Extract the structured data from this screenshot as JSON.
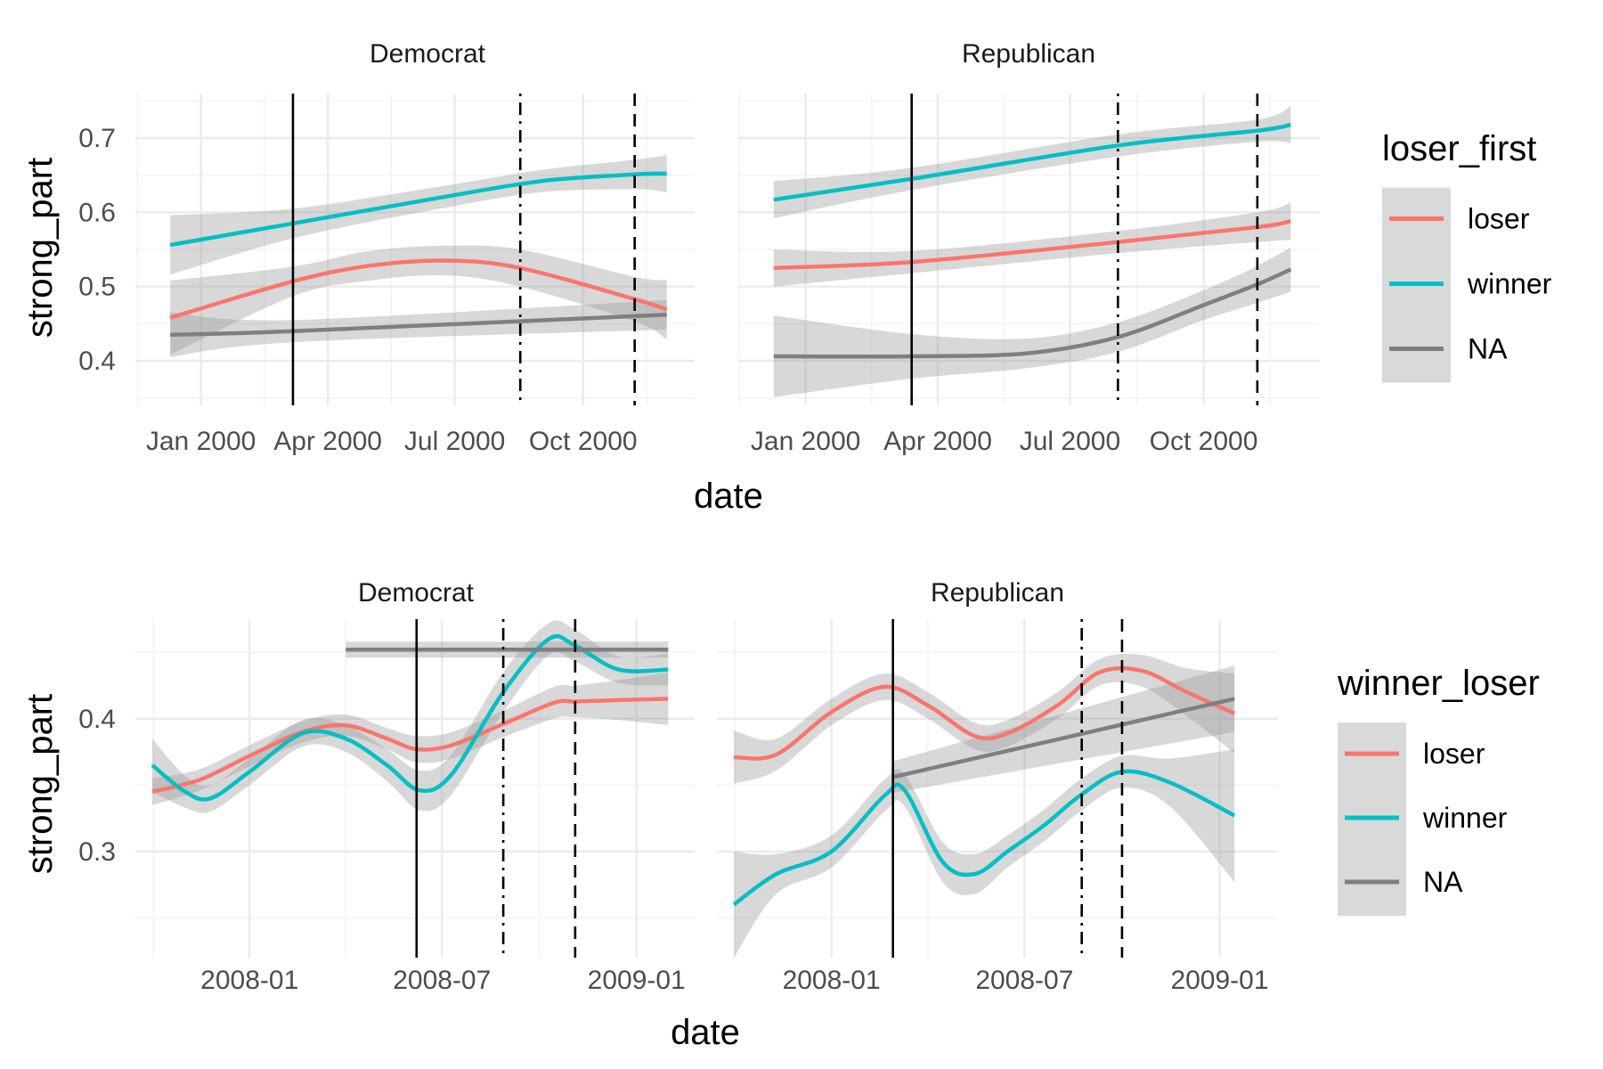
{
  "chart_data": [
    {
      "type": "line",
      "smooth_band": true,
      "facets": [
        "Democrat",
        "Republican"
      ],
      "xlabel": "date",
      "ylabel": "strong_part",
      "x_ticks": [
        "Jan 2000",
        "Apr 2000",
        "Jul 2000",
        "Oct 2000"
      ],
      "x_tick_values": [
        "2000-01-01",
        "2000-04-01",
        "2000-07-01",
        "2000-10-01"
      ],
      "xlim": [
        "1999-11-15",
        "2000-12-20"
      ],
      "ylim": [
        0.34,
        0.76
      ],
      "y_ticks": [
        0.4,
        0.5,
        0.6,
        0.7
      ],
      "y_tick_labels": [
        "0.4",
        "0.5",
        "0.6",
        "0.7"
      ],
      "grid": true,
      "legend": {
        "title": "loser_first",
        "position": "right",
        "entries": [
          "loser",
          "winner",
          "NA"
        ]
      },
      "series_colors": {
        "loser": "#F8766D",
        "winner": "#00BFC4",
        "NA": "#7F7F7F"
      },
      "panels": [
        {
          "facet": "Democrat",
          "vlines": [
            {
              "x": "2000-03-07",
              "linetype": "solid"
            },
            {
              "x": "2000-08-17",
              "linetype": "dotdash"
            },
            {
              "x": "2000-11-07",
              "linetype": "dashed"
            }
          ],
          "series": [
            {
              "name": "winner",
              "x": [
                "1999-12-10",
                "2000-03-07",
                "2000-06-15",
                "2000-09-01",
                "2000-11-07",
                "2000-11-30"
              ],
              "y": [
                0.556,
                0.585,
                0.618,
                0.642,
                0.651,
                0.652
              ],
              "se": [
                0.04,
                0.02,
                0.015,
                0.015,
                0.02,
                0.025
              ]
            },
            {
              "name": "loser",
              "x": [
                "1999-12-10",
                "2000-03-07",
                "2000-05-01",
                "2000-06-25",
                "2000-08-17",
                "2000-11-07",
                "2000-11-30"
              ],
              "y": [
                0.458,
                0.507,
                0.528,
                0.535,
                0.525,
                0.483,
                0.469
              ],
              "se": [
                0.05,
                0.02,
                0.02,
                0.02,
                0.025,
                0.03,
                0.04
              ]
            },
            {
              "name": "NA",
              "x": [
                "1999-12-10",
                "2000-03-07",
                "2000-11-30"
              ],
              "y": [
                0.435,
                0.44,
                0.462
              ],
              "se": [
                0.03,
                0.015,
                0.02
              ]
            }
          ]
        },
        {
          "facet": "Republican",
          "vlines": [
            {
              "x": "2000-03-14",
              "linetype": "solid"
            },
            {
              "x": "2000-08-03",
              "linetype": "dotdash"
            },
            {
              "x": "2000-11-07",
              "linetype": "dashed"
            }
          ],
          "series": [
            {
              "name": "winner",
              "x": [
                "1999-12-10",
                "2000-03-14",
                "2000-08-03",
                "2000-11-07",
                "2000-11-30"
              ],
              "y": [
                0.617,
                0.645,
                0.69,
                0.71,
                0.718
              ],
              "se": [
                0.025,
                0.015,
                0.015,
                0.015,
                0.025
              ]
            },
            {
              "name": "loser",
              "x": [
                "1999-12-10",
                "2000-03-14",
                "2000-08-03",
                "2000-11-07",
                "2000-11-30"
              ],
              "y": [
                0.525,
                0.533,
                0.56,
                0.58,
                0.588
              ],
              "se": [
                0.025,
                0.015,
                0.015,
                0.02,
                0.025
              ]
            },
            {
              "name": "NA",
              "x": [
                "1999-12-10",
                "2000-03-14",
                "2000-06-01",
                "2000-08-03",
                "2000-10-01",
                "2000-11-07",
                "2000-11-30"
              ],
              "y": [
                0.406,
                0.406,
                0.41,
                0.432,
                0.475,
                0.503,
                0.523
              ],
              "se": [
                0.055,
                0.03,
                0.02,
                0.02,
                0.02,
                0.025,
                0.03
              ]
            }
          ]
        }
      ]
    },
    {
      "type": "line",
      "smooth_band": true,
      "facets": [
        "Democrat",
        "Republican"
      ],
      "xlabel": "date",
      "ylabel": "strong_part",
      "x_ticks": [
        "2008-01",
        "2008-07",
        "2009-01"
      ],
      "x_tick_values": [
        "2008-01-01",
        "2008-07-01",
        "2009-01-01"
      ],
      "xlim": [
        "2007-09-15",
        "2009-02-25"
      ],
      "ylim": [
        0.22,
        0.475
      ],
      "y_ticks": [
        0.3,
        0.4
      ],
      "y_tick_labels": [
        "0.3",
        "0.4"
      ],
      "grid": true,
      "legend": {
        "title": "winner_loser",
        "position": "right",
        "entries": [
          "loser",
          "winner",
          "NA"
        ]
      },
      "series_colors": {
        "loser": "#F8766D",
        "winner": "#00BFC4",
        "NA": "#7F7F7F"
      },
      "panels": [
        {
          "facet": "Democrat",
          "vlines": [
            {
              "x": "2008-06-07",
              "linetype": "solid"
            },
            {
              "x": "2008-08-28",
              "linetype": "dotdash"
            },
            {
              "x": "2008-11-04",
              "linetype": "dashed"
            }
          ],
          "series": [
            {
              "name": "loser",
              "x": [
                "2007-10-01",
                "2007-11-15",
                "2008-01-01",
                "2008-02-20",
                "2008-04-01",
                "2008-05-10",
                "2008-06-07",
                "2008-07-10",
                "2008-08-28",
                "2008-10-15",
                "2008-11-04",
                "2008-12-15",
                "2009-01-31"
              ],
              "y": [
                0.345,
                0.354,
                0.372,
                0.39,
                0.395,
                0.385,
                0.377,
                0.38,
                0.396,
                0.412,
                0.413,
                0.414,
                0.415
              ],
              "se": [
                0.01,
                0.008,
                0.008,
                0.008,
                0.008,
                0.008,
                0.01,
                0.01,
                0.01,
                0.012,
                0.012,
                0.015,
                0.02
              ]
            },
            {
              "name": "winner",
              "x": [
                "2007-10-01",
                "2007-11-01",
                "2007-11-25",
                "2008-01-01",
                "2008-02-20",
                "2008-04-01",
                "2008-05-10",
                "2008-06-10",
                "2008-07-10",
                "2008-08-28",
                "2008-10-10",
                "2008-11-04",
                "2008-12-15",
                "2009-01-31"
              ],
              "y": [
                0.365,
                0.345,
                0.34,
                0.36,
                0.389,
                0.385,
                0.365,
                0.346,
                0.358,
                0.42,
                0.46,
                0.455,
                0.437,
                0.437
              ],
              "se": [
                0.02,
                0.012,
                0.01,
                0.01,
                0.01,
                0.01,
                0.012,
                0.015,
                0.015,
                0.015,
                0.012,
                0.012,
                0.01,
                0.012
              ]
            },
            {
              "name": "NA",
              "x": [
                "2008-04-01",
                "2009-01-31"
              ],
              "y": [
                0.452,
                0.452
              ],
              "se": [
                0.006,
                0.006
              ]
            }
          ]
        },
        {
          "facet": "Republican",
          "vlines": [
            {
              "x": "2008-02-28",
              "linetype": "solid"
            },
            {
              "x": "2008-08-24",
              "linetype": "dotdash"
            },
            {
              "x": "2008-10-01",
              "linetype": "dashed"
            }
          ],
          "series": [
            {
              "name": "loser",
              "x": [
                "2007-10-01",
                "2007-11-10",
                "2008-01-01",
                "2008-02-20",
                "2008-04-01",
                "2008-05-15",
                "2008-06-15",
                "2008-08-01",
                "2008-09-10",
                "2008-10-20",
                "2008-12-01",
                "2009-01-15"
              ],
              "y": [
                0.371,
                0.373,
                0.405,
                0.424,
                0.41,
                0.387,
                0.389,
                0.41,
                0.435,
                0.436,
                0.42,
                0.404
              ],
              "se": [
                0.02,
                0.012,
                0.01,
                0.01,
                0.01,
                0.01,
                0.01,
                0.01,
                0.01,
                0.012,
                0.018,
                0.03
              ]
            },
            {
              "name": "winner",
              "x": [
                "2007-10-01",
                "2007-11-10",
                "2008-01-01",
                "2008-02-20",
                "2008-03-10",
                "2008-04-15",
                "2008-05-15",
                "2008-06-15",
                "2008-07-20",
                "2008-08-24",
                "2008-10-01",
                "2008-11-15",
                "2009-01-15"
              ],
              "y": [
                0.26,
                0.283,
                0.3,
                0.342,
                0.346,
                0.292,
                0.283,
                0.3,
                0.32,
                0.343,
                0.36,
                0.352,
                0.327
              ],
              "se": [
                0.04,
                0.015,
                0.012,
                0.012,
                0.012,
                0.015,
                0.015,
                0.012,
                0.012,
                0.012,
                0.012,
                0.018,
                0.05
              ]
            },
            {
              "name": "NA",
              "x": [
                "2008-02-28",
                "2009-01-15"
              ],
              "y": [
                0.356,
                0.415
              ],
              "se": [
                0.012,
                0.025
              ]
            }
          ]
        }
      ]
    }
  ]
}
